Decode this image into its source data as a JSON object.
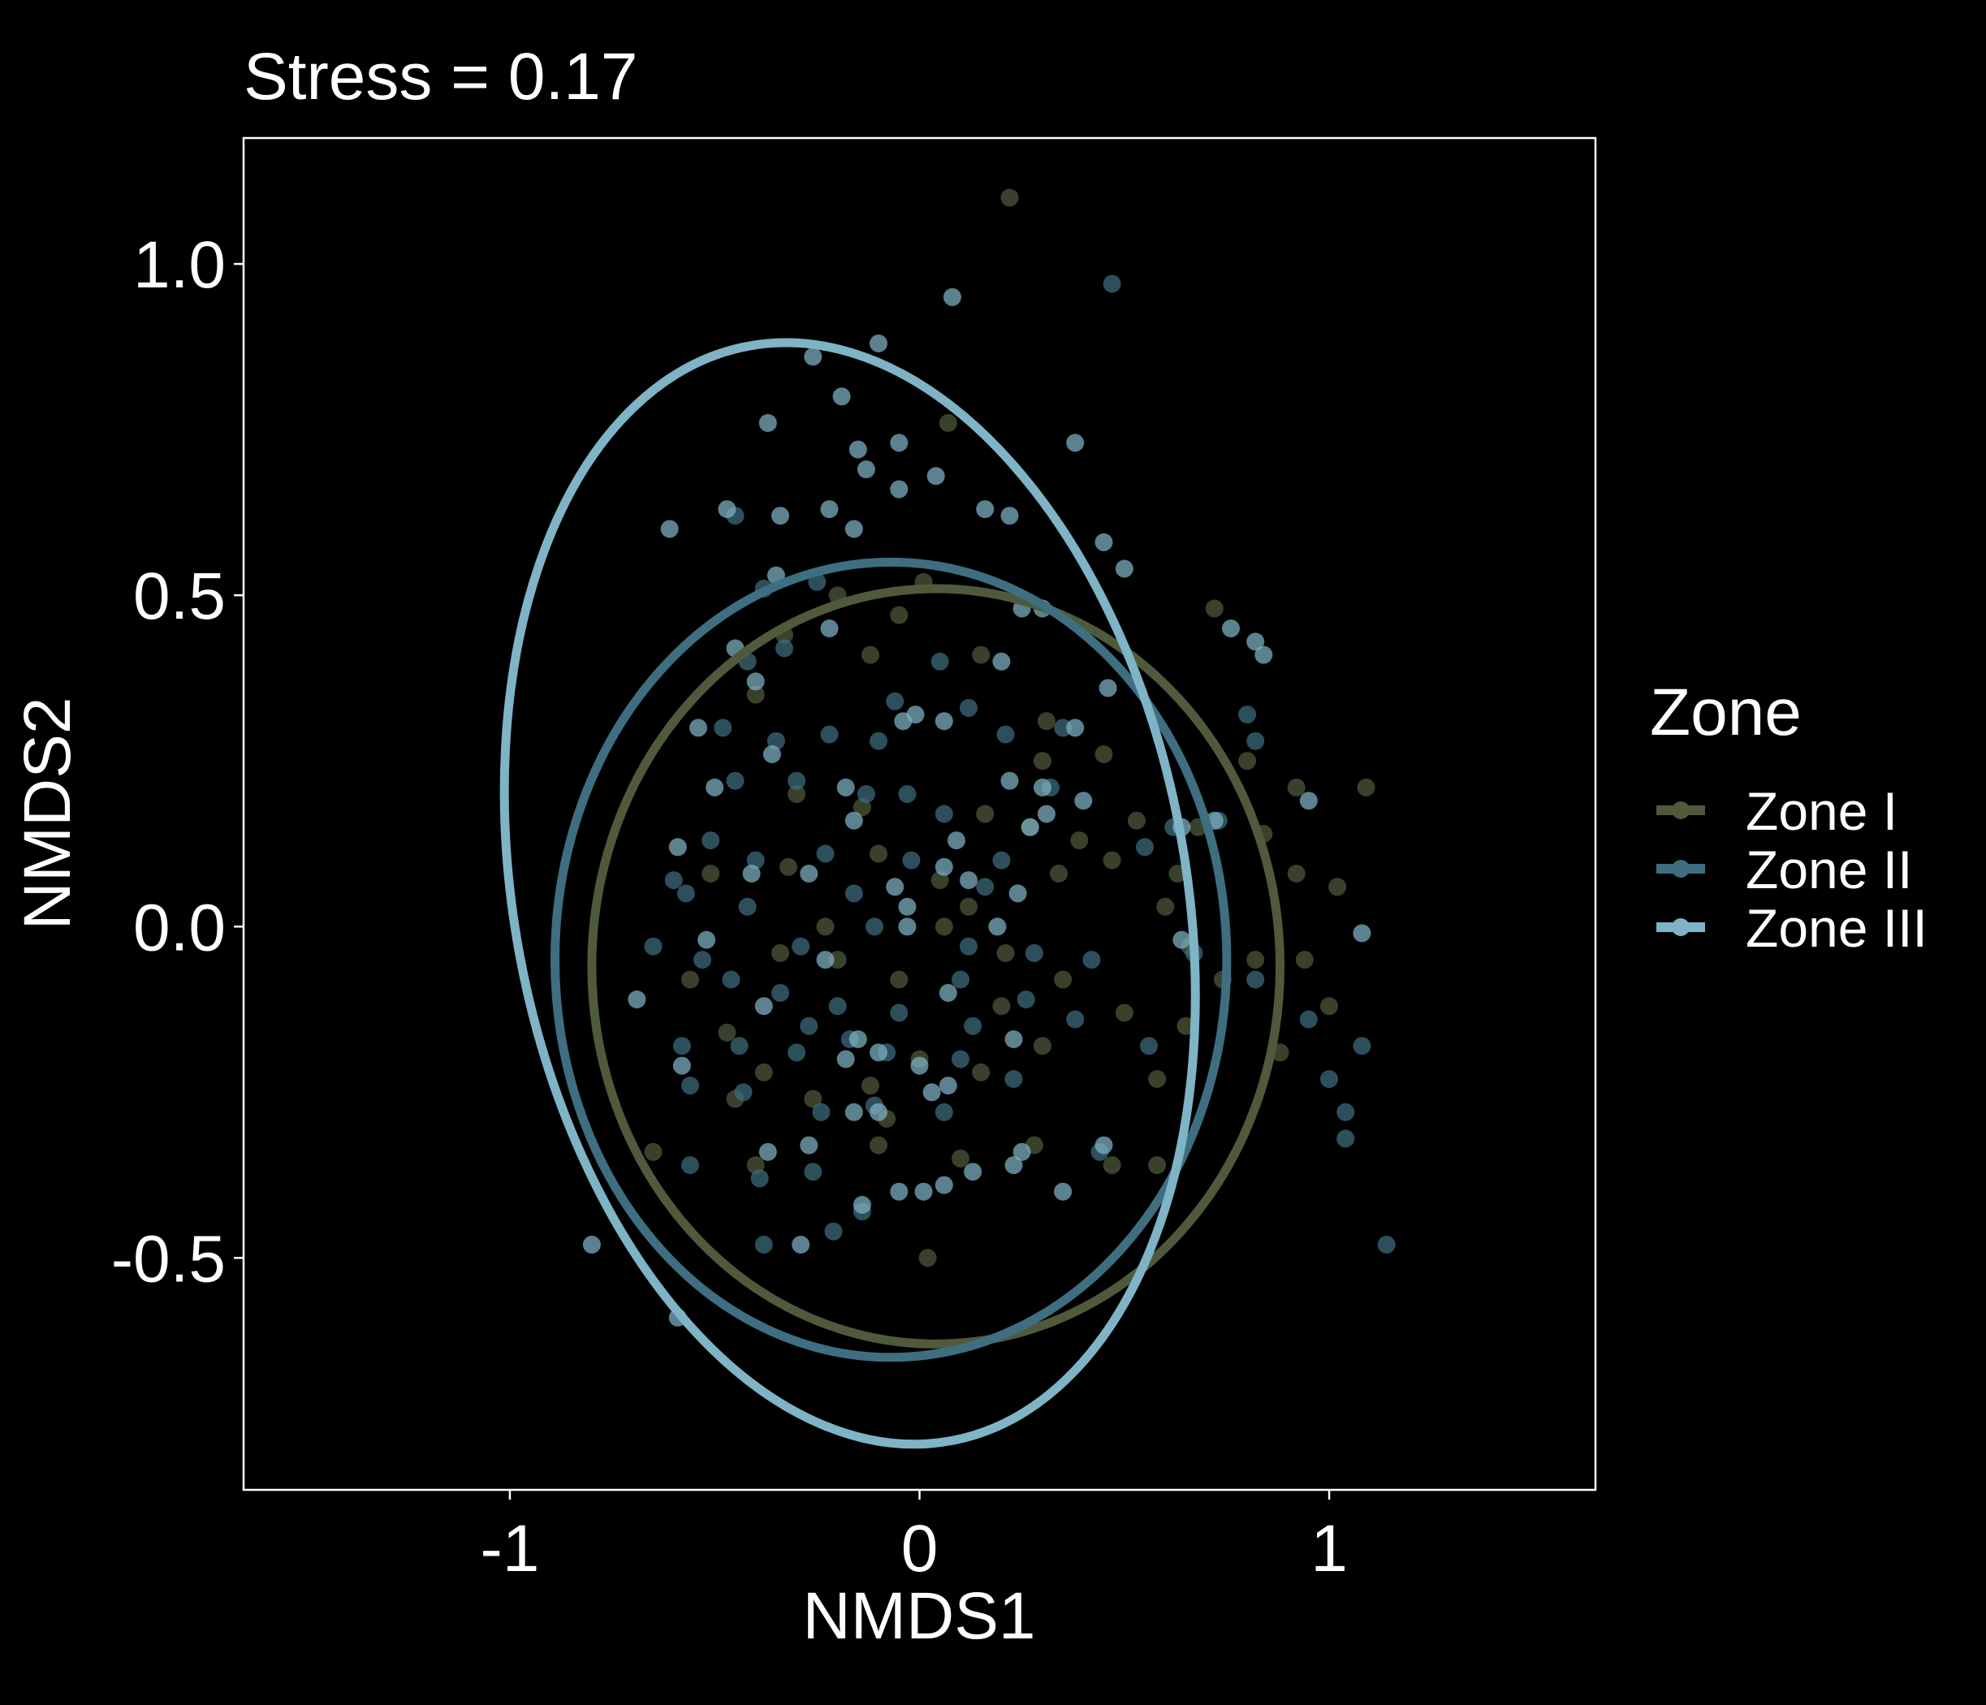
{
  "chart_data": {
    "type": "scatter",
    "title": "Stress = 0.17",
    "xlabel": "NMDS1",
    "ylabel": "NMDS2",
    "xlim": [
      -1.65,
      1.65
    ],
    "ylim": [
      -0.85,
      1.19
    ],
    "x_ticks": [
      -1,
      0,
      1
    ],
    "x_tick_labels": [
      "-1",
      "0",
      "1"
    ],
    "y_ticks": [
      -0.5,
      0.0,
      0.5,
      1.0
    ],
    "y_tick_labels": [
      "-0.5",
      "0.0",
      "0.5",
      "1.0"
    ],
    "grid": false,
    "legend": {
      "title": "Zone",
      "position": "right"
    },
    "series": [
      {
        "name": "Zone I",
        "color": "#4f5a3c",
        "ellipse": {
          "cx": 0.04,
          "cy": -0.06,
          "rx": 0.84,
          "ry": 0.57,
          "angle": 0
        },
        "points": [
          [
            0.22,
            1.1
          ],
          [
            0.07,
            0.76
          ],
          [
            -0.2,
            0.5
          ],
          [
            -0.05,
            0.47
          ],
          [
            0.01,
            0.52
          ],
          [
            -0.4,
            0.35
          ],
          [
            -0.12,
            0.41
          ],
          [
            0.15,
            0.41
          ],
          [
            0.31,
            0.31
          ],
          [
            -0.33,
            0.44
          ],
          [
            0.45,
            0.26
          ],
          [
            0.72,
            0.48
          ],
          [
            0.8,
            0.25
          ],
          [
            0.92,
            0.21
          ],
          [
            1.09,
            0.21
          ],
          [
            0.84,
            0.14
          ],
          [
            0.47,
            0.1
          ],
          [
            0.63,
            0.08
          ],
          [
            0.92,
            0.08
          ],
          [
            1.02,
            0.06
          ],
          [
            0.34,
            0.08
          ],
          [
            0.05,
            0.07
          ],
          [
            0.12,
            0.03
          ],
          [
            -0.32,
            0.09
          ],
          [
            -0.51,
            0.08
          ],
          [
            -0.2,
            -0.05
          ],
          [
            -0.05,
            -0.08
          ],
          [
            0.21,
            -0.04
          ],
          [
            0.35,
            -0.08
          ],
          [
            0.66,
            -0.03
          ],
          [
            0.82,
            -0.05
          ],
          [
            0.94,
            -0.05
          ],
          [
            1.0,
            -0.12
          ],
          [
            0.65,
            -0.15
          ],
          [
            0.5,
            -0.13
          ],
          [
            -0.56,
            -0.08
          ],
          [
            -0.47,
            -0.16
          ],
          [
            -0.38,
            -0.22
          ],
          [
            -0.26,
            -0.26
          ],
          [
            -0.12,
            -0.24
          ],
          [
            0.0,
            -0.2
          ],
          [
            0.15,
            -0.22
          ],
          [
            0.3,
            -0.18
          ],
          [
            0.58,
            -0.23
          ],
          [
            -0.65,
            -0.34
          ],
          [
            -0.4,
            -0.36
          ],
          [
            -0.1,
            -0.33
          ],
          [
            0.1,
            -0.35
          ],
          [
            0.28,
            -0.33
          ],
          [
            0.47,
            -0.36
          ],
          [
            0.58,
            -0.36
          ],
          [
            0.02,
            -0.5
          ],
          [
            -0.08,
            -0.29
          ],
          [
            -0.45,
            -0.26
          ],
          [
            -0.34,
            -0.04
          ],
          [
            0.16,
            0.17
          ],
          [
            -0.14,
            0.18
          ],
          [
            0.27,
            0.15
          ],
          [
            0.39,
            0.13
          ],
          [
            0.53,
            0.16
          ],
          [
            0.68,
            0.15
          ],
          [
            0.6,
            0.03
          ],
          [
            0.74,
            -0.08
          ],
          [
            0.88,
            -0.19
          ],
          [
            0.3,
            0.25
          ],
          [
            -0.3,
            0.2
          ],
          [
            -0.1,
            0.11
          ],
          [
            -0.23,
            0.0
          ],
          [
            0.06,
            0.0
          ],
          [
            0.2,
            -0.12
          ]
        ]
      },
      {
        "name": "Zone II",
        "color": "#3e6e80",
        "ellipse": {
          "cx": -0.07,
          "cy": -0.05,
          "rx": 0.82,
          "ry": 0.6,
          "angle": 0
        },
        "points": [
          [
            0.47,
            0.97
          ],
          [
            -0.45,
            0.62
          ],
          [
            -0.38,
            0.51
          ],
          [
            -0.25,
            0.52
          ],
          [
            -0.33,
            0.42
          ],
          [
            -0.06,
            0.34
          ],
          [
            0.12,
            0.33
          ],
          [
            0.8,
            0.32
          ],
          [
            0.82,
            0.28
          ],
          [
            -0.48,
            0.3
          ],
          [
            -0.22,
            0.29
          ],
          [
            -0.1,
            0.28
          ],
          [
            0.21,
            0.29
          ],
          [
            -0.45,
            0.22
          ],
          [
            -0.3,
            0.22
          ],
          [
            -0.13,
            0.2
          ],
          [
            0.06,
            0.17
          ],
          [
            0.32,
            0.21
          ],
          [
            0.62,
            0.15
          ],
          [
            0.73,
            0.16
          ],
          [
            -0.51,
            0.13
          ],
          [
            -0.4,
            0.1
          ],
          [
            -0.23,
            0.11
          ],
          [
            -0.02,
            0.1
          ],
          [
            0.16,
            0.06
          ],
          [
            0.55,
            0.12
          ],
          [
            -0.57,
            0.05
          ],
          [
            -0.42,
            0.03
          ],
          [
            -0.29,
            -0.03
          ],
          [
            -0.11,
            0.0
          ],
          [
            0.12,
            -0.03
          ],
          [
            0.28,
            -0.04
          ],
          [
            0.42,
            -0.05
          ],
          [
            0.67,
            -0.04
          ],
          [
            0.82,
            -0.08
          ],
          [
            -0.65,
            -0.03
          ],
          [
            -0.53,
            -0.05
          ],
          [
            -0.34,
            -0.1
          ],
          [
            -0.2,
            -0.12
          ],
          [
            -0.05,
            -0.13
          ],
          [
            0.13,
            -0.15
          ],
          [
            0.26,
            -0.11
          ],
          [
            0.38,
            -0.14
          ],
          [
            0.95,
            -0.14
          ],
          [
            -0.58,
            -0.18
          ],
          [
            -0.44,
            -0.18
          ],
          [
            -0.3,
            -0.19
          ],
          [
            -0.17,
            -0.17
          ],
          [
            -0.08,
            -0.19
          ],
          [
            0.1,
            -0.2
          ],
          [
            0.23,
            -0.23
          ],
          [
            0.56,
            -0.18
          ],
          [
            1.0,
            -0.23
          ],
          [
            1.04,
            -0.28
          ],
          [
            1.04,
            -0.32
          ],
          [
            1.08,
            -0.18
          ],
          [
            -0.56,
            -0.24
          ],
          [
            -0.43,
            -0.25
          ],
          [
            -0.24,
            -0.28
          ],
          [
            -0.11,
            -0.27
          ],
          [
            0.06,
            -0.28
          ],
          [
            -0.56,
            -0.36
          ],
          [
            -0.39,
            -0.38
          ],
          [
            -0.26,
            -0.37
          ],
          [
            0.44,
            -0.34
          ],
          [
            -0.14,
            -0.43
          ],
          [
            -0.21,
            -0.46
          ],
          [
            -0.38,
            -0.48
          ],
          [
            1.14,
            -0.48
          ],
          [
            -0.42,
            0.4
          ],
          [
            -0.03,
            0.2
          ],
          [
            0.2,
            0.1
          ],
          [
            -0.6,
            0.07
          ],
          [
            -0.46,
            -0.08
          ],
          [
            0.35,
            0.3
          ],
          [
            0.05,
            0.4
          ],
          [
            -0.16,
            0.05
          ],
          [
            -0.35,
            0.28
          ],
          [
            0.1,
            -0.08
          ],
          [
            -0.27,
            -0.15
          ]
        ]
      },
      {
        "name": "Zone III",
        "color": "#7fb3c6",
        "ellipse": {
          "cx": -0.17,
          "cy": 0.05,
          "rx": 0.82,
          "ry": 0.84,
          "angle": -10.5
        },
        "points": [
          [
            0.08,
            0.95
          ],
          [
            -0.1,
            0.88
          ],
          [
            -0.26,
            0.86
          ],
          [
            -0.19,
            0.8
          ],
          [
            -0.37,
            0.76
          ],
          [
            -0.15,
            0.72
          ],
          [
            -0.05,
            0.73
          ],
          [
            0.38,
            0.73
          ],
          [
            -0.13,
            0.69
          ],
          [
            0.04,
            0.68
          ],
          [
            -0.47,
            0.63
          ],
          [
            -0.22,
            0.63
          ],
          [
            -0.05,
            0.66
          ],
          [
            0.16,
            0.63
          ],
          [
            0.22,
            0.62
          ],
          [
            -0.34,
            0.62
          ],
          [
            -0.16,
            0.6
          ],
          [
            0.45,
            0.58
          ],
          [
            -0.61,
            0.6
          ],
          [
            -0.35,
            0.53
          ],
          [
            0.5,
            0.54
          ],
          [
            -0.45,
            0.42
          ],
          [
            -0.22,
            0.45
          ],
          [
            0.25,
            0.48
          ],
          [
            0.3,
            0.48
          ],
          [
            0.76,
            0.45
          ],
          [
            0.82,
            0.43
          ],
          [
            0.84,
            0.41
          ],
          [
            0.2,
            0.4
          ],
          [
            0.46,
            0.36
          ],
          [
            -0.04,
            0.31
          ],
          [
            -0.01,
            0.32
          ],
          [
            0.06,
            0.31
          ],
          [
            0.38,
            0.3
          ],
          [
            -0.4,
            0.37
          ],
          [
            -0.54,
            0.3
          ],
          [
            -0.36,
            0.26
          ],
          [
            0.31,
            0.17
          ],
          [
            0.3,
            0.21
          ],
          [
            0.4,
            0.19
          ],
          [
            -0.18,
            0.21
          ],
          [
            0.22,
            0.22
          ],
          [
            0.95,
            0.19
          ],
          [
            0.72,
            0.16
          ],
          [
            -0.5,
            0.21
          ],
          [
            -0.16,
            0.16
          ],
          [
            0.27,
            0.15
          ],
          [
            0.06,
            0.09
          ],
          [
            -0.27,
            0.08
          ],
          [
            0.09,
            0.13
          ],
          [
            0.24,
            0.05
          ],
          [
            -0.41,
            0.08
          ],
          [
            -0.03,
            0.03
          ],
          [
            -0.59,
            0.12
          ],
          [
            0.12,
            0.07
          ],
          [
            -0.06,
            0.06
          ],
          [
            0.64,
            0.15
          ],
          [
            -0.52,
            -0.02
          ],
          [
            -0.23,
            -0.05
          ],
          [
            -0.03,
            0.0
          ],
          [
            0.19,
            0.0
          ],
          [
            0.64,
            -0.02
          ],
          [
            1.08,
            -0.01
          ],
          [
            -0.69,
            -0.11
          ],
          [
            -0.38,
            -0.12
          ],
          [
            -0.15,
            -0.17
          ],
          [
            0.07,
            -0.1
          ],
          [
            0.23,
            -0.17
          ],
          [
            -0.18,
            -0.2
          ],
          [
            -0.1,
            -0.19
          ],
          [
            0.0,
            -0.21
          ],
          [
            0.03,
            -0.25
          ],
          [
            0.07,
            -0.24
          ],
          [
            -0.58,
            -0.21
          ],
          [
            -0.16,
            -0.28
          ],
          [
            -0.1,
            -0.28
          ],
          [
            -0.37,
            -0.34
          ],
          [
            -0.27,
            -0.33
          ],
          [
            0.13,
            -0.37
          ],
          [
            0.23,
            -0.36
          ],
          [
            -0.14,
            -0.42
          ],
          [
            -0.05,
            -0.4
          ],
          [
            0.01,
            -0.4
          ],
          [
            0.06,
            -0.39
          ],
          [
            -0.8,
            -0.48
          ],
          [
            -0.29,
            -0.48
          ],
          [
            -0.59,
            -0.59
          ],
          [
            0.35,
            -0.4
          ],
          [
            0.25,
            -0.34
          ],
          [
            0.45,
            -0.33
          ]
        ]
      }
    ]
  }
}
